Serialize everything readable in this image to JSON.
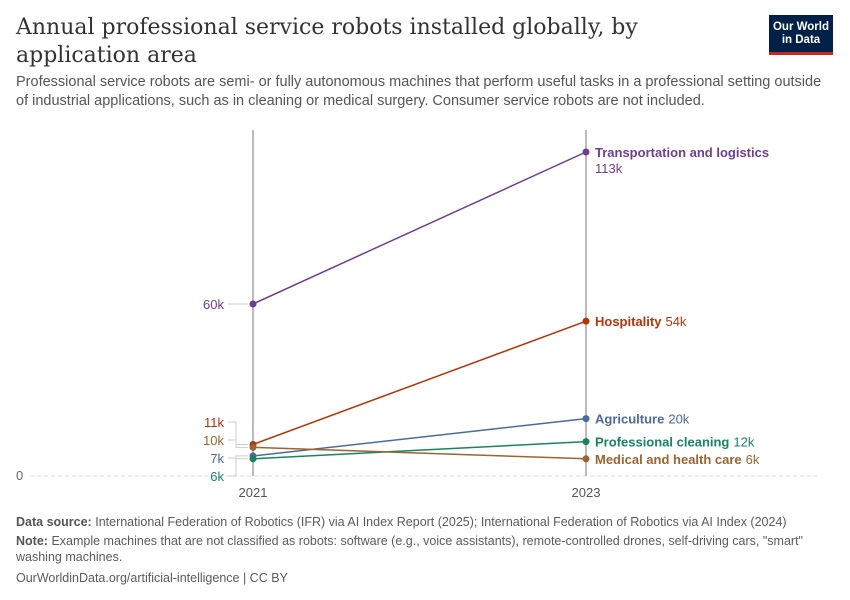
{
  "header": {
    "title": "Annual professional service robots installed globally, by application area",
    "subtitle": "Professional service robots are semi- or fully autonomous machines that perform useful tasks in a professional setting outside of industrial applications, such as in cleaning or medical surgery. Consumer service robots are not included.",
    "logo": "Our World in Data"
  },
  "chart_data": {
    "type": "line",
    "x": [
      "2021",
      "2023"
    ],
    "ylim": [
      0,
      113000
    ],
    "y_ticks": [
      {
        "value": 0,
        "label": "0"
      }
    ],
    "series": [
      {
        "name": "Transportation and logistics",
        "color": "#6d3e91",
        "values": [
          60000,
          113000
        ],
        "labels": [
          "60k",
          "113k"
        ]
      },
      {
        "name": "Hospitality",
        "color": "#b13507",
        "values": [
          11000,
          54000
        ],
        "labels": [
          "11k",
          "54k"
        ]
      },
      {
        "name": "Agriculture",
        "color": "#4c6a9c",
        "values": [
          7000,
          20000
        ],
        "labels": [
          "7k",
          "20k"
        ]
      },
      {
        "name": "Professional cleaning",
        "color": "#18845f",
        "values": [
          6000,
          12000
        ],
        "labels": [
          "6k",
          "12k"
        ]
      },
      {
        "name": "Medical and health care",
        "color": "#9a652e",
        "values": [
          10000,
          6000
        ],
        "labels": [
          "10k",
          "6k"
        ]
      }
    ]
  },
  "footer": {
    "source_label": "Data source:",
    "source": "International Federation of Robotics (IFR) via AI Index Report (2025); International Federation of Robotics via AI Index (2024)",
    "note_label": "Note:",
    "note": "Example machines that are not classified as robots: software (e.g., voice assistants), remote-controlled drones, self-driving cars, \"smart\" washing machines.",
    "credit": "OurWorldinData.org/artificial-intelligence | CC BY"
  }
}
